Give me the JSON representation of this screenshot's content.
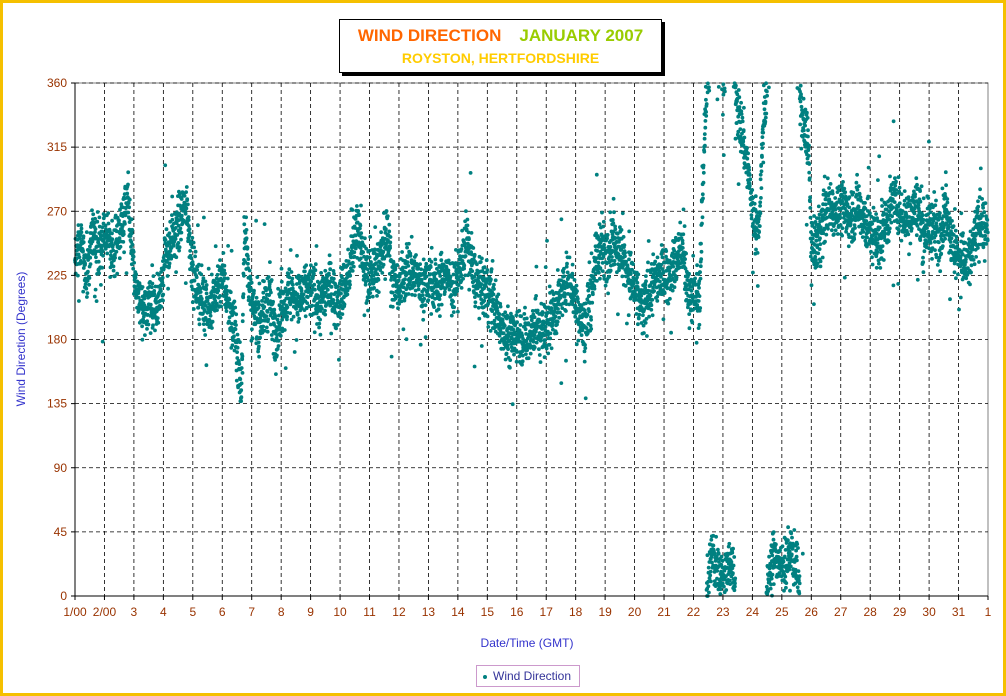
{
  "title": {
    "main": "WIND DIRECTION",
    "month": "JANUARY 2007",
    "location": "ROYSTON, HERTFORDSHIRE"
  },
  "colors": {
    "frame": "#f5c000",
    "title_main": "#ff6600",
    "title_month": "#99cc00",
    "title_location": "#ffcc00",
    "points": "#008080",
    "ticks": "#993300",
    "axis_titles": "#3333cc"
  },
  "chart_data": {
    "type": "scatter",
    "title": "WIND DIRECTION JANUARY 2007",
    "subtitle": "ROYSTON, HERTFORDSHIRE",
    "xlabel": "Date/Time (GMT)",
    "ylabel": "Wind Direction (Degrees)",
    "ylim": [
      0,
      360
    ],
    "yticks": [
      0,
      45,
      90,
      135,
      180,
      225,
      270,
      315,
      360
    ],
    "xticks": [
      "1/00",
      "2/00",
      "3",
      "4",
      "5",
      "6",
      "7",
      "8",
      "9",
      "10",
      "11",
      "12",
      "13",
      "14",
      "15",
      "16",
      "17",
      "18",
      "19",
      "20",
      "21",
      "22",
      "23",
      "24",
      "25",
      "26",
      "27",
      "28",
      "29",
      "30",
      "31",
      "1"
    ],
    "xlim_days": [
      1,
      32
    ],
    "grid": true,
    "legend": {
      "position": "bottom",
      "label": "Wind Direction"
    },
    "series": [
      {
        "name": "Wind Direction",
        "marker": "circle",
        "daily_profile": [
          {
            "day": 1,
            "points": [
              [
                0.0,
                235
              ],
              [
                0.2,
                245
              ],
              [
                0.4,
                225
              ],
              [
                0.6,
                260
              ],
              [
                0.8,
                240
              ]
            ]
          },
          {
            "day": 2,
            "points": [
              [
                0.0,
                255
              ],
              [
                0.3,
                240
              ],
              [
                0.6,
                265
              ],
              [
                0.8,
                280
              ]
            ]
          },
          {
            "day": 3,
            "points": [
              [
                0.0,
                225
              ],
              [
                0.3,
                195
              ],
              [
                0.6,
                210
              ],
              [
                0.8,
                200
              ]
            ]
          },
          {
            "day": 4,
            "points": [
              [
                0.0,
                230
              ],
              [
                0.3,
                250
              ],
              [
                0.6,
                265
              ],
              [
                0.8,
                275
              ]
            ]
          },
          {
            "day": 5,
            "points": [
              [
                0.0,
                225
              ],
              [
                0.3,
                210
              ],
              [
                0.6,
                200
              ],
              [
                0.8,
                215
              ]
            ]
          },
          {
            "day": 6,
            "points": [
              [
                0.0,
                225
              ],
              [
                0.3,
                200
              ],
              [
                0.5,
                175
              ],
              [
                0.65,
                140
              ],
              [
                0.75,
                260
              ]
            ]
          },
          {
            "day": 7,
            "points": [
              [
                0.0,
                200
              ],
              [
                0.3,
                195
              ],
              [
                0.6,
                210
              ],
              [
                0.8,
                185
              ]
            ]
          },
          {
            "day": 8,
            "points": [
              [
                0.0,
                200
              ],
              [
                0.3,
                215
              ],
              [
                0.6,
                205
              ],
              [
                0.8,
                215
              ]
            ]
          },
          {
            "day": 9,
            "points": [
              [
                0.0,
                215
              ],
              [
                0.3,
                205
              ],
              [
                0.6,
                220
              ],
              [
                0.8,
                210
              ]
            ]
          },
          {
            "day": 10,
            "points": [
              [
                0.0,
                210
              ],
              [
                0.3,
                225
              ],
              [
                0.6,
                265
              ],
              [
                0.8,
                230
              ]
            ]
          },
          {
            "day": 11,
            "points": [
              [
                0.0,
                225
              ],
              [
                0.3,
                230
              ],
              [
                0.6,
                260
              ],
              [
                0.8,
                220
              ]
            ]
          },
          {
            "day": 12,
            "points": [
              [
                0.0,
                215
              ],
              [
                0.3,
                230
              ],
              [
                0.6,
                225
              ],
              [
                0.8,
                215
              ]
            ]
          },
          {
            "day": 13,
            "points": [
              [
                0.0,
                225
              ],
              [
                0.3,
                215
              ],
              [
                0.6,
                230
              ],
              [
                0.8,
                215
              ]
            ]
          },
          {
            "day": 14,
            "points": [
              [
                0.0,
                225
              ],
              [
                0.3,
                250
              ],
              [
                0.6,
                220
              ],
              [
                0.8,
                215
              ]
            ]
          },
          {
            "day": 15,
            "points": [
              [
                0.0,
                215
              ],
              [
                0.3,
                200
              ],
              [
                0.6,
                185
              ],
              [
                0.8,
                180
              ]
            ]
          },
          {
            "day": 16,
            "points": [
              [
                0.0,
                185
              ],
              [
                0.3,
                180
              ],
              [
                0.6,
                190
              ],
              [
                0.8,
                185
              ]
            ]
          },
          {
            "day": 17,
            "points": [
              [
                0.0,
                190
              ],
              [
                0.3,
                200
              ],
              [
                0.6,
                215
              ],
              [
                0.8,
                225
              ]
            ]
          },
          {
            "day": 18,
            "points": [
              [
                0.0,
                205
              ],
              [
                0.3,
                185
              ],
              [
                0.6,
                225
              ],
              [
                0.8,
                245
              ]
            ]
          },
          {
            "day": 19,
            "points": [
              [
                0.0,
                240
              ],
              [
                0.3,
                250
              ],
              [
                0.6,
                240
              ],
              [
                0.8,
                225
              ]
            ]
          },
          {
            "day": 20,
            "points": [
              [
                0.0,
                215
              ],
              [
                0.3,
                200
              ],
              [
                0.6,
                220
              ],
              [
                0.8,
                225
              ]
            ]
          },
          {
            "day": 21,
            "points": [
              [
                0.0,
                225
              ],
              [
                0.3,
                230
              ],
              [
                0.6,
                245
              ],
              [
                0.8,
                215
              ]
            ]
          },
          {
            "day": 22,
            "points": [
              [
                0.0,
                210
              ],
              [
                0.2,
                210
              ],
              [
                0.4,
                340
              ],
              [
                0.6,
                30
              ],
              [
                0.8,
                20
              ]
            ]
          },
          {
            "day": 23,
            "points": [
              [
                0.0,
                10
              ],
              [
                0.3,
                25
              ],
              [
                0.5,
                340
              ],
              [
                0.7,
                320
              ],
              [
                0.9,
                290
              ]
            ]
          },
          {
            "day": 24,
            "points": [
              [
                0.0,
                270
              ],
              [
                0.2,
                255
              ],
              [
                0.4,
                340
              ],
              [
                0.6,
                20
              ],
              [
                0.8,
                30
              ]
            ]
          },
          {
            "day": 25,
            "points": [
              [
                0.0,
                20
              ],
              [
                0.3,
                30
              ],
              [
                0.5,
                25
              ],
              [
                0.7,
                330
              ],
              [
                0.9,
                320
              ]
            ]
          },
          {
            "day": 26,
            "points": [
              [
                0.0,
                240
              ],
              [
                0.3,
                255
              ],
              [
                0.6,
                275
              ],
              [
                0.8,
                270
              ]
            ]
          },
          {
            "day": 27,
            "points": [
              [
                0.0,
                275
              ],
              [
                0.3,
                265
              ],
              [
                0.6,
                275
              ],
              [
                0.8,
                265
              ]
            ]
          },
          {
            "day": 28,
            "points": [
              [
                0.0,
                255
              ],
              [
                0.3,
                250
              ],
              [
                0.6,
                265
              ],
              [
                0.8,
                280
              ]
            ]
          },
          {
            "day": 29,
            "points": [
              [
                0.0,
                270
              ],
              [
                0.3,
                265
              ],
              [
                0.6,
                275
              ],
              [
                0.8,
                255
              ]
            ]
          },
          {
            "day": 30,
            "points": [
              [
                0.0,
                260
              ],
              [
                0.3,
                255
              ],
              [
                0.6,
                270
              ],
              [
                0.8,
                245
              ]
            ]
          },
          {
            "day": 31,
            "points": [
              [
                0.0,
                240
              ],
              [
                0.3,
                230
              ],
              [
                0.6,
                255
              ],
              [
                0.8,
                265
              ]
            ]
          },
          {
            "day": 32,
            "points": [
              [
                0.0,
                250
              ]
            ]
          }
        ]
      }
    ]
  },
  "legend_label": "Wind Direction"
}
